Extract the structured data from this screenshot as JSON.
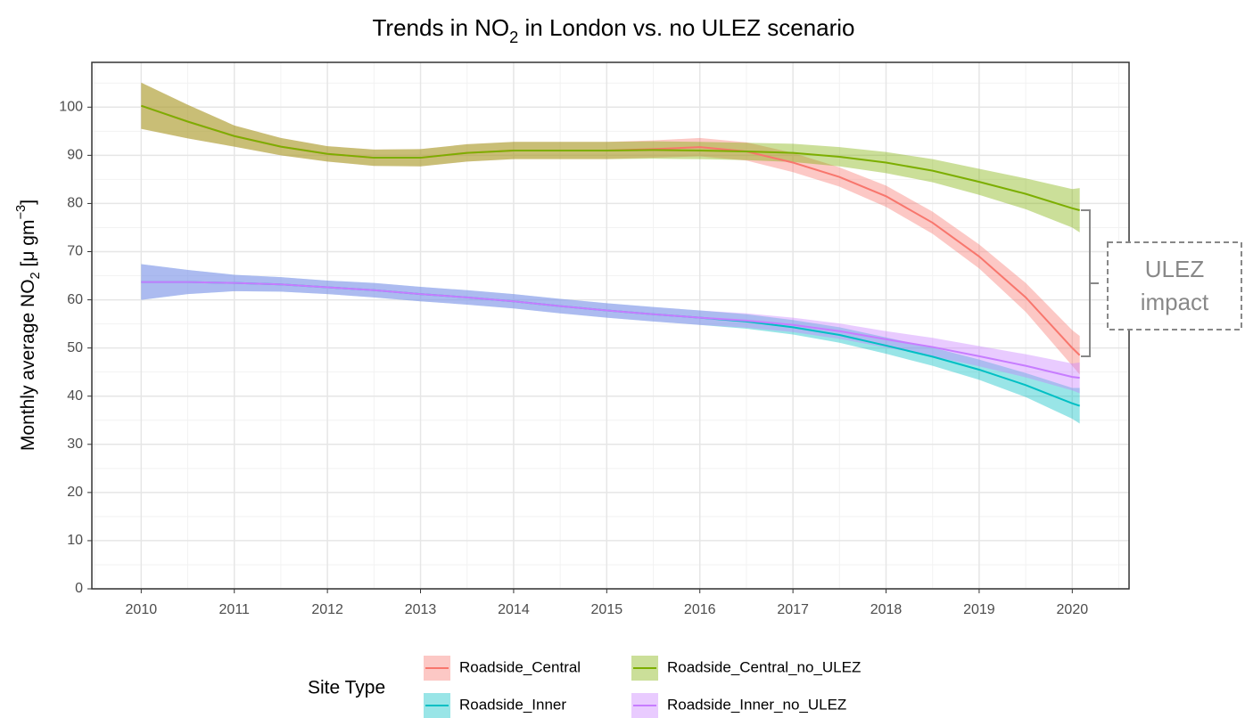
{
  "chart_data": {
    "type": "line",
    "title_parts": [
      "Trends in NO",
      "2",
      " in London vs. no ULEZ scenario"
    ],
    "y_label_parts": [
      "Monthly average NO",
      "2",
      " [μ gm",
      "−3",
      "]"
    ],
    "legend_title": "Site Type",
    "annotation": [
      "ULEZ",
      "impact"
    ],
    "grid": true,
    "minor_grid": true,
    "xlim": [
      2009.47,
      2020.61
    ],
    "ylim": [
      0,
      109.3
    ],
    "xticks": [
      2010,
      2011,
      2012,
      2013,
      2014,
      2015,
      2016,
      2017,
      2018,
      2019,
      2020
    ],
    "yticks": [
      0,
      10,
      20,
      30,
      40,
      50,
      60,
      70,
      80,
      90,
      100
    ],
    "x": [
      2010,
      2010.5,
      2011,
      2011.5,
      2012,
      2012.5,
      2013,
      2013.5,
      2014,
      2014.5,
      2015,
      2015.5,
      2016,
      2016.5,
      2017,
      2017.5,
      2018,
      2018.5,
      2019,
      2019.5,
      2020,
      2020.08
    ],
    "series": [
      {
        "name": "Roadside_Central",
        "color": "#F8766D",
        "values": [
          100.3,
          97,
          94,
          91.8,
          90.3,
          89.5,
          89.5,
          90.5,
          91,
          91,
          91,
          91.3,
          91.7,
          90.8,
          88.5,
          85.5,
          81.5,
          76,
          69,
          60.5,
          50,
          48.5
        ],
        "lower": [
          95.5,
          93.5,
          91.8,
          90,
          88.7,
          87.8,
          87.7,
          88.7,
          89.2,
          89.2,
          89.2,
          89.5,
          89.8,
          88.9,
          86.5,
          83.5,
          79.3,
          73.7,
          66.5,
          57.5,
          46.3,
          44.5
        ],
        "upper": [
          105.1,
          100.5,
          96.2,
          93.6,
          91.9,
          91.2,
          91.3,
          92.3,
          92.8,
          92.8,
          92.8,
          93.1,
          93.6,
          92.7,
          90.5,
          87.5,
          83.7,
          78.3,
          71.5,
          63.5,
          53.7,
          52.5
        ]
      },
      {
        "name": "Roadside_Central_no_ULEZ",
        "color": "#7CAE00",
        "values": [
          100.3,
          97,
          94,
          91.8,
          90.3,
          89.5,
          89.5,
          90.5,
          91,
          91,
          91,
          91.1,
          91,
          90.8,
          90.5,
          89.7,
          88.5,
          86.8,
          84.5,
          82,
          79,
          78.6
        ],
        "lower": [
          95.5,
          93.5,
          91.8,
          90,
          88.7,
          87.8,
          87.7,
          88.7,
          89.2,
          89.2,
          89.2,
          89.3,
          89.2,
          89,
          88.6,
          87.7,
          86.3,
          84.4,
          81.8,
          78.8,
          75,
          74
        ],
        "upper": [
          105.1,
          100.5,
          96.2,
          93.6,
          91.9,
          91.2,
          91.3,
          92.3,
          92.8,
          92.8,
          92.8,
          92.9,
          92.8,
          92.6,
          92.4,
          91.7,
          90.7,
          89.2,
          87.2,
          85.2,
          83,
          83.2
        ]
      },
      {
        "name": "Roadside_Inner",
        "color": "#00BFC4",
        "values": [
          63.7,
          63.7,
          63.5,
          63.2,
          62.6,
          62,
          61.2,
          60.5,
          59.7,
          58.7,
          57.8,
          57,
          56.3,
          55.5,
          54.3,
          52.7,
          50.5,
          48.2,
          45.5,
          42.3,
          38.5,
          38
        ],
        "lower": [
          60,
          61.2,
          61.8,
          61.7,
          61.2,
          60.5,
          59.7,
          59,
          58.2,
          57.2,
          56.3,
          55.5,
          54.8,
          54,
          52.8,
          51.1,
          48.8,
          46.3,
          43.4,
          39.8,
          35.3,
          34.3
        ],
        "upper": [
          67.4,
          66.2,
          65.2,
          64.7,
          64,
          63.5,
          62.7,
          62,
          61.2,
          60.2,
          59.3,
          58.5,
          57.8,
          57,
          55.8,
          54.3,
          52.2,
          50.1,
          47.6,
          44.8,
          41.7,
          41.7
        ]
      },
      {
        "name": "Roadside_Inner_no_ULEZ",
        "color": "#C77CFF",
        "values": [
          63.7,
          63.7,
          63.5,
          63.2,
          62.6,
          62,
          61.2,
          60.5,
          59.7,
          58.7,
          57.8,
          57,
          56.3,
          55.7,
          54.8,
          53.5,
          51.8,
          50.2,
          48.3,
          46.3,
          44,
          43.8
        ],
        "lower": [
          60,
          61.2,
          61.8,
          61.7,
          61.2,
          60.5,
          59.7,
          59,
          58.2,
          57.2,
          56.3,
          55.5,
          54.8,
          54.2,
          53.3,
          51.9,
          50.1,
          48.3,
          46.2,
          43.9,
          41.2,
          40.6
        ],
        "upper": [
          67.4,
          66.2,
          65.2,
          64.7,
          64,
          63.5,
          62.7,
          62,
          61.2,
          60.2,
          59.3,
          58.5,
          57.8,
          57.2,
          56.3,
          55.1,
          53.5,
          52.1,
          50.4,
          48.7,
          46.8,
          47
        ]
      }
    ]
  }
}
